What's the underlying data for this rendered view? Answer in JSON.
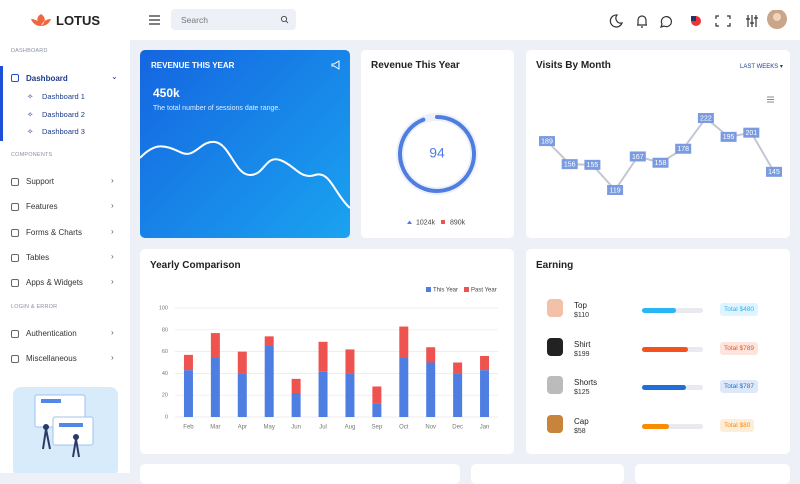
{
  "header": {
    "logo": "LOTUS",
    "search_placeholder": "Search"
  },
  "sidebar": {
    "section_1": "DASHBOARD",
    "dashboard": "Dashboard",
    "sub_items": [
      "Dashboard 1",
      "Dashboard 2",
      "Dashboard 3"
    ],
    "section_2": "COMPONENTS",
    "components": [
      "Support",
      "Features",
      "Forms & Charts",
      "Tables",
      "Apps & Widgets"
    ],
    "section_3": "LOGIN & ERROR",
    "auth": [
      "Authentication",
      "Miscellaneous"
    ]
  },
  "revenue_card": {
    "title": "REVENUE THIS YEAR",
    "value": "450k",
    "note": "The total number of sessions date range."
  },
  "revenue_donut": {
    "type": "donut",
    "title": "Revenue This Year",
    "value": 94,
    "legend": [
      "1024k",
      "890k"
    ],
    "colors": [
      "#4f7ee2",
      "#ef5350"
    ]
  },
  "visits": {
    "type": "line",
    "title": "Visits By Month",
    "filter": "LAST WEEKS",
    "values": [
      189,
      156,
      155,
      119,
      167,
      158,
      178,
      222,
      195,
      201,
      145
    ],
    "color": "#7b9be0"
  },
  "yearly": {
    "type": "bar",
    "stacked": true,
    "title": "Yearly Comparison",
    "categories": [
      "Feb",
      "Mar",
      "Apr",
      "May",
      "Jun",
      "Jul",
      "Aug",
      "Sep",
      "Oct",
      "Nov",
      "Dec",
      "Jan"
    ],
    "series": [
      {
        "name": "This Year",
        "color": "#4f7ee2",
        "values": [
          43,
          55,
          40,
          66,
          22,
          42,
          40,
          12,
          55,
          50,
          40,
          43
        ]
      },
      {
        "name": "Past Year",
        "color": "#ef5350",
        "values": [
          14,
          22,
          20,
          8,
          13,
          27,
          22,
          16,
          28,
          14,
          10,
          13
        ]
      }
    ],
    "ylim": [
      0,
      100
    ],
    "yticks": [
      0,
      20,
      40,
      60,
      80,
      100
    ],
    "grid": true,
    "legend": "top-right"
  },
  "earning": {
    "title": "Earning",
    "items": [
      {
        "name": "Top",
        "price": "$110",
        "total": "Total $480",
        "progress": 55,
        "color": "#29b6f6"
      },
      {
        "name": "Shirt",
        "price": "$199",
        "total": "Total $789",
        "progress": 75,
        "color": "#f4511e"
      },
      {
        "name": "Shorts",
        "price": "$125",
        "total": "Total $787",
        "progress": 72,
        "color": "#1e6fd9"
      },
      {
        "name": "Cap",
        "price": "$58",
        "total": "Total $80",
        "progress": 45,
        "color": "#fb8c00"
      }
    ]
  }
}
